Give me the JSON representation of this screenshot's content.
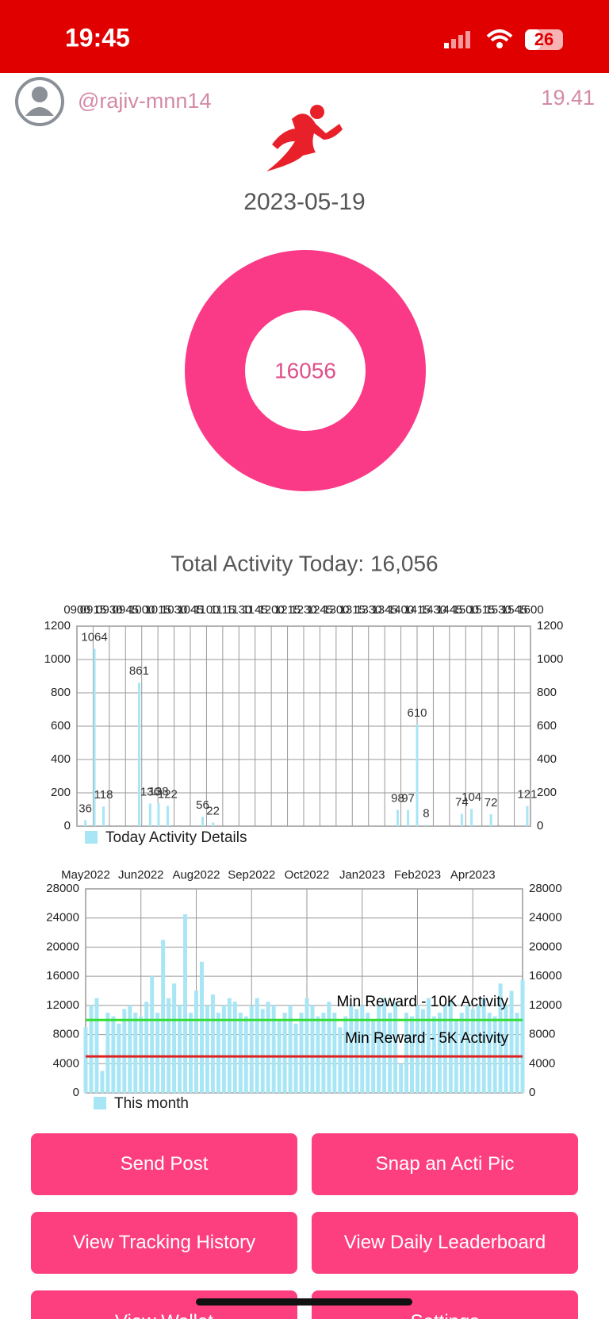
{
  "status_bar": {
    "time": "19:45",
    "battery": "26"
  },
  "header": {
    "username": "@rajiv-mnn14",
    "version": "19.41"
  },
  "date": "2023-05-19",
  "donut": {
    "value": 16056,
    "color": "#fb3a87"
  },
  "total_activity": "Total Activity Today: 16,056",
  "chart_data": [
    {
      "type": "bar",
      "legend": "Today Activity Details",
      "color": "#a8e6f5",
      "xlim": [
        9,
        16
      ],
      "xticks": [
        {
          "value": 9,
          "label": "0900"
        },
        {
          "value": 9.25,
          "label": "0915"
        },
        {
          "value": 9.5,
          "label": "0930"
        },
        {
          "value": 9.75,
          "label": "0945"
        },
        {
          "value": 10,
          "label": "1000"
        },
        {
          "value": 10.25,
          "label": "1015"
        },
        {
          "value": 10.5,
          "label": "1030"
        },
        {
          "value": 10.75,
          "label": "1045"
        },
        {
          "value": 11,
          "label": "1100"
        },
        {
          "value": 11.25,
          "label": "1115"
        },
        {
          "value": 11.5,
          "label": "1130"
        },
        {
          "value": 11.75,
          "label": "1145"
        },
        {
          "value": 12,
          "label": "1200"
        },
        {
          "value": 12.25,
          "label": "1215"
        },
        {
          "value": 12.5,
          "label": "1230"
        },
        {
          "value": 12.75,
          "label": "1245"
        },
        {
          "value": 13,
          "label": "1300"
        },
        {
          "value": 13.25,
          "label": "1315"
        },
        {
          "value": 13.5,
          "label": "1330"
        },
        {
          "value": 13.75,
          "label": "1345"
        },
        {
          "value": 14,
          "label": "1400"
        },
        {
          "value": 14.25,
          "label": "1415"
        },
        {
          "value": 14.5,
          "label": "1430"
        },
        {
          "value": 14.75,
          "label": "1445"
        },
        {
          "value": 15,
          "label": "1500"
        },
        {
          "value": 15.25,
          "label": "1515"
        },
        {
          "value": 15.5,
          "label": "1530"
        },
        {
          "value": 15.75,
          "label": "1545"
        },
        {
          "value": 16,
          "label": "1600"
        }
      ],
      "ylim": [
        0,
        1200
      ],
      "yticks": [
        0,
        200,
        400,
        600,
        800,
        1000,
        1200
      ],
      "x": [
        9.13,
        9.27,
        9.41,
        9.96,
        10.13,
        10.26,
        10.4,
        10.94,
        11.1,
        13.95,
        14.11,
        14.25,
        14.39,
        14.94,
        15.09,
        15.39,
        15.95
      ],
      "values": [
        36,
        1064,
        118,
        861,
        136,
        138,
        122,
        56,
        22,
        98,
        97,
        610,
        8,
        74,
        104,
        72,
        121
      ],
      "grid": true
    },
    {
      "type": "bar",
      "legend": "This month",
      "color": "#a8e6f5",
      "xlim": [
        0,
        7.9
      ],
      "xticks": [
        {
          "value": 0,
          "label": "May2022"
        },
        {
          "value": 1,
          "label": "Jun2022"
        },
        {
          "value": 2,
          "label": "Aug2022"
        },
        {
          "value": 3,
          "label": "Sep2022"
        },
        {
          "value": 4,
          "label": "Oct2022"
        },
        {
          "value": 5,
          "label": "Jan2023"
        },
        {
          "value": 6,
          "label": "Feb2023"
        },
        {
          "value": 7,
          "label": "Apr2023"
        }
      ],
      "ylim": [
        0,
        28000
      ],
      "yticks": [
        0,
        4000,
        8000,
        12000,
        16000,
        20000,
        24000,
        28000
      ],
      "x": [
        0,
        0.1,
        0.2,
        0.3,
        0.4,
        0.5,
        0.6,
        0.7,
        0.8,
        0.9,
        1,
        1.1,
        1.2,
        1.3,
        1.4,
        1.5,
        1.6,
        1.7,
        1.8,
        1.9,
        2,
        2.1,
        2.2,
        2.3,
        2.4,
        2.5,
        2.6,
        2.7,
        2.8,
        2.9,
        3,
        3.1,
        3.2,
        3.3,
        3.4,
        3.5,
        3.6,
        3.7,
        3.8,
        3.9,
        4,
        4.1,
        4.2,
        4.3,
        4.4,
        4.5,
        4.6,
        4.7,
        4.8,
        4.9,
        5,
        5.1,
        5.2,
        5.3,
        5.4,
        5.5,
        5.6,
        5.7,
        5.8,
        5.9,
        6,
        6.1,
        6.2,
        6.3,
        6.4,
        6.5,
        6.6,
        6.7,
        6.8,
        6.9,
        7,
        7.1,
        7.2,
        7.3,
        7.4,
        7.5,
        7.6,
        7.7,
        7.8,
        7.9
      ],
      "values": [
        9000,
        12000,
        13000,
        3000,
        11000,
        10500,
        9500,
        11500,
        12000,
        11000,
        10500,
        12500,
        16000,
        11000,
        21000,
        13000,
        15000,
        12000,
        24500,
        11000,
        14000,
        18000,
        12000,
        13500,
        11000,
        12000,
        13000,
        12500,
        11000,
        10500,
        12000,
        13000,
        11500,
        12500,
        12000,
        10000,
        11000,
        12000,
        9500,
        11000,
        13000,
        12000,
        10500,
        11000,
        12500,
        11000,
        9000,
        10500,
        12000,
        11500,
        12000,
        11000,
        10000,
        12000,
        13000,
        11000,
        12500,
        4000,
        11000,
        10500,
        12000,
        11500,
        13000,
        10500,
        11000,
        12000,
        12500,
        10000,
        11000,
        12000,
        11500,
        12000,
        13000,
        11000,
        10500,
        15000,
        12000,
        14000,
        11000,
        15500
      ],
      "reference_lines": [
        {
          "value": 10000,
          "label": "Min Reward - 10K Activity",
          "color": "#33dd33"
        },
        {
          "value": 5000,
          "label": "Min Reward - 5K Activity",
          "color": "#dd2222"
        }
      ],
      "grid": true
    }
  ],
  "buttons": [
    "Send Post",
    "Snap an Acti Pic",
    "View Tracking History",
    "View Daily Leaderboard",
    "View Wallet",
    "Settings"
  ]
}
